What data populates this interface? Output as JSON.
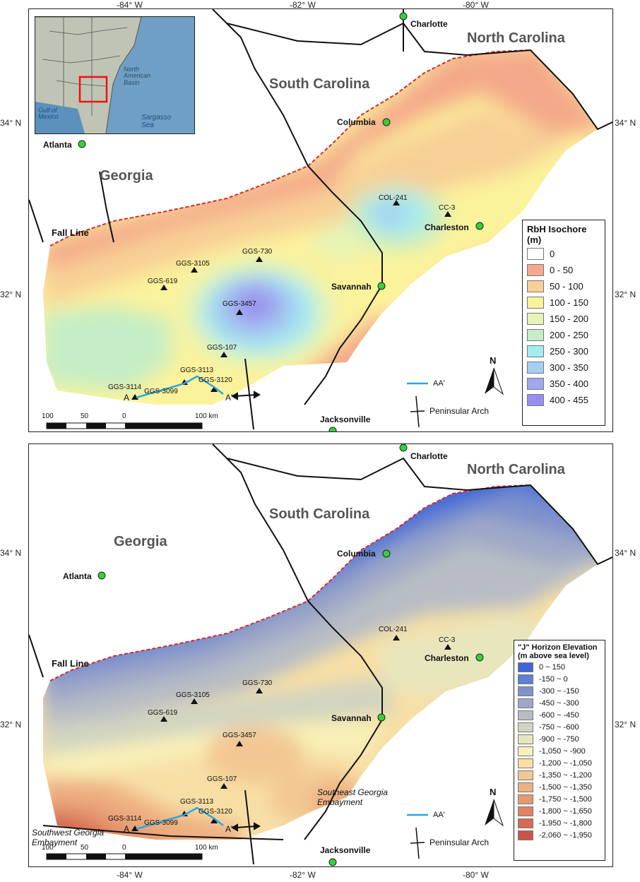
{
  "axes": {
    "lon_ticks": [
      "-84° W",
      "-82° W",
      "-80° W"
    ],
    "lat_ticks": [
      "34° N",
      "32° N"
    ]
  },
  "labels": {
    "states": {
      "nc": "North Carolina",
      "sc": "South Carolina",
      "ga": "Georgia"
    },
    "cities": {
      "charlotte": "Charlotte",
      "columbia": "Columbia",
      "atlanta": "Atlanta",
      "charleston": "Charleston",
      "savannah": "Savannah",
      "jacksonville": "Jacksonville"
    },
    "fall_line": "Fall Line",
    "wells": {
      "col241": "COL-241",
      "cc3": "CC-3",
      "ggs730": "GGS-730",
      "ggs3105": "GGS-3105",
      "ggs619": "GGS-619",
      "ggs3457": "GGS-3457",
      "ggs107": "GGS-107",
      "ggs3113": "GGS-3113",
      "ggs3120": "GGS-3120",
      "ggs3114": "GGS-3114",
      "ggs3099": "GGS-3099"
    },
    "section_a": "A",
    "section_a_prime": "A'",
    "section_legend": "AA'",
    "arch_legend": "Peninsular Arch",
    "north": "N",
    "scale": {
      "t100": "100",
      "t50": "50",
      "t0": "0",
      "t100km": "100 km"
    },
    "inset": {
      "north_american_basin": "North American Basin",
      "gulf": "Gulf of Mexico",
      "sargasso": "Sargasso Sea"
    },
    "embayments": {
      "southeast": "Southeast Georgia Embayment",
      "southwest": "Southwest Georgia Embayment"
    }
  },
  "legend_top": {
    "title": "RbH Isochore",
    "units": "(m)",
    "classes": [
      {
        "label": "0",
        "color": "#ffffff"
      },
      {
        "label": "0 - 50",
        "color": "#f4a98a"
      },
      {
        "label": "50 - 100",
        "color": "#f8cf96"
      },
      {
        "label": "100 - 150",
        "color": "#fbf29c"
      },
      {
        "label": "150 - 200",
        "color": "#e6f4b6"
      },
      {
        "label": "200 - 250",
        "color": "#c4eec6"
      },
      {
        "label": "250 - 300",
        "color": "#a2edf0"
      },
      {
        "label": "300 - 350",
        "color": "#a5d0f1"
      },
      {
        "label": "350 - 400",
        "color": "#9fa8ee"
      },
      {
        "label": "400 - 455",
        "color": "#9a8df0"
      }
    ]
  },
  "legend_bottom": {
    "title": "\"J\" Horizon Elevation",
    "units": "(m above sea level)",
    "classes": [
      {
        "label": "0 ~ 150",
        "color": "#3f66d6"
      },
      {
        "label": "-150 ~ 0",
        "color": "#5e7fd3"
      },
      {
        "label": "-300 ~ -150",
        "color": "#7f92cc"
      },
      {
        "label": "-450 ~ -300",
        "color": "#9ea8c8"
      },
      {
        "label": "-600 ~ -450",
        "color": "#b8bdc5"
      },
      {
        "label": "-750 ~ -600",
        "color": "#d2d4c1"
      },
      {
        "label": "-900 ~ -750",
        "color": "#e8e6bd"
      },
      {
        "label": "-1,050 ~ -900",
        "color": "#f8f0b8"
      },
      {
        "label": "-1,200 ~ -1,050",
        "color": "#f7dfa5"
      },
      {
        "label": "-1,350 ~ -1,200",
        "color": "#f3c793"
      },
      {
        "label": "-1,500 ~ -1,350",
        "color": "#eeb082"
      },
      {
        "label": "-1,750 ~ -1,500",
        "color": "#e59a72"
      },
      {
        "label": "-1,800 ~ -1,650",
        "color": "#de8464"
      },
      {
        "label": "-1,950 ~ -1,800",
        "color": "#d56d55"
      },
      {
        "label": "-2,060 ~ -1,950",
        "color": "#cc5447"
      }
    ]
  }
}
